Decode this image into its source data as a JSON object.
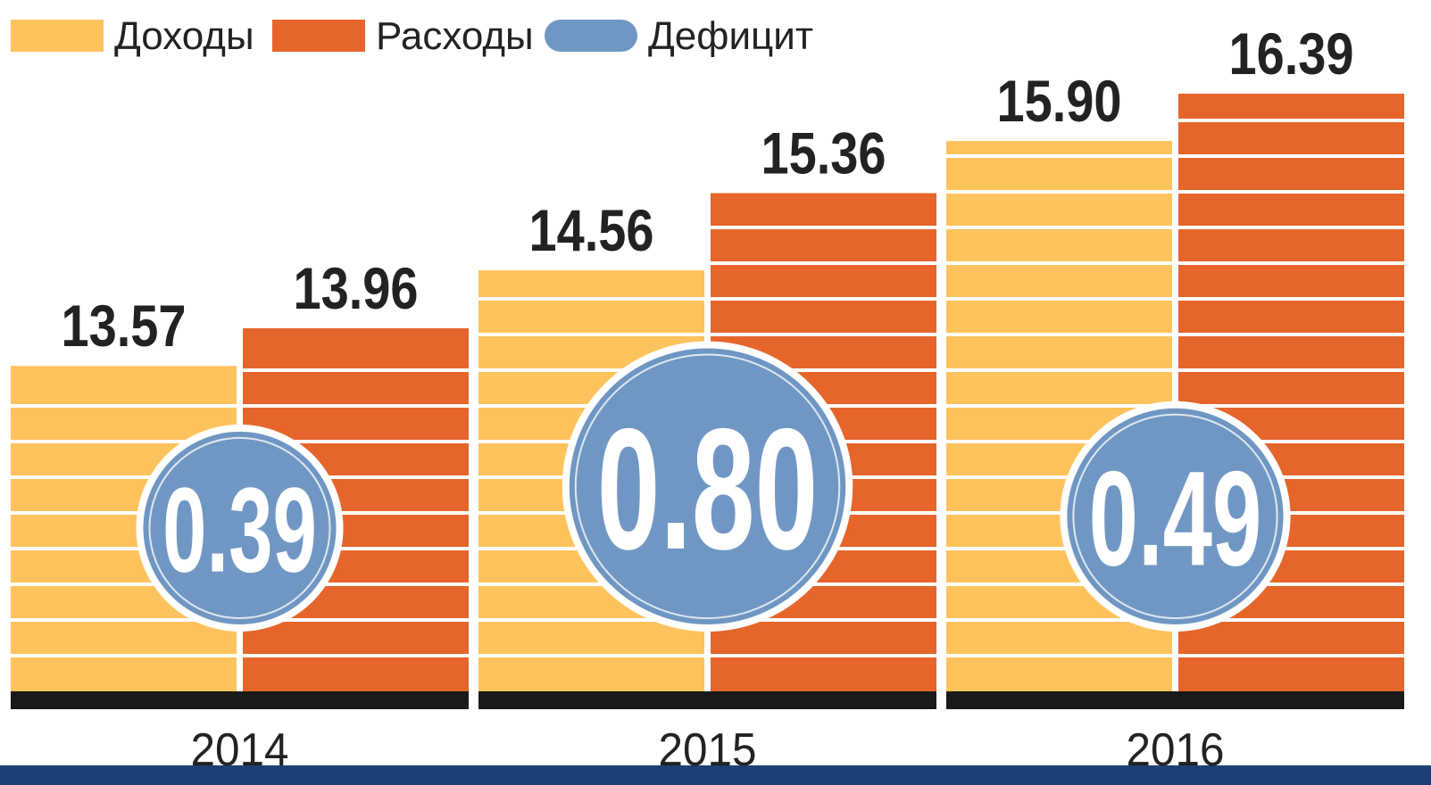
{
  "chart_data": {
    "type": "bar",
    "categories": [
      "2014",
      "2015",
      "2016"
    ],
    "series": [
      {
        "name": "Доходы",
        "color": "#fec35c",
        "values": [
          13.57,
          14.56,
          15.9
        ],
        "value_labels": [
          "13.57",
          "14.56",
          "15.90"
        ]
      },
      {
        "name": "Расходы",
        "color": "#e5652b",
        "values": [
          13.96,
          15.36,
          16.39
        ],
        "value_labels": [
          "13.96",
          "15.36",
          "16.39"
        ]
      },
      {
        "name": "Дефицит",
        "color": "#7097c3",
        "values": [
          0.39,
          0.8,
          0.49
        ],
        "value_labels": [
          "0.39",
          "0.80",
          "0.49"
        ]
      }
    ],
    "ylim": [
      10.2,
      17
    ]
  }
}
